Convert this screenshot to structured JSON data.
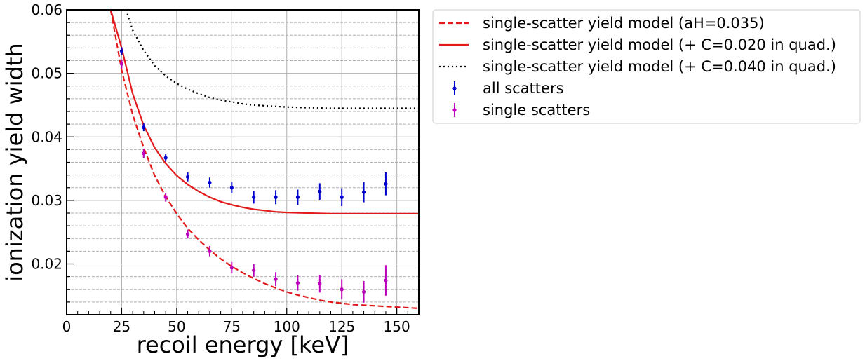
{
  "chart_data": {
    "type": "scatter",
    "xlabel": "recoil energy [keV]",
    "ylabel": "ionization yield width",
    "xlim": [
      0,
      160
    ],
    "ylim": [
      0.012,
      0.06
    ],
    "xticks": [
      0,
      25,
      50,
      75,
      100,
      125,
      150
    ],
    "xtick_labels": [
      "0",
      "25",
      "50",
      "75",
      "100",
      "125",
      "150"
    ],
    "yticks": [
      0.02,
      0.03,
      0.04,
      0.05,
      0.06
    ],
    "ytick_labels": [
      "0.02",
      "0.03",
      "0.04",
      "0.05",
      "0.06"
    ],
    "grid": true,
    "legend_position": "outside upper right",
    "lines": [
      {
        "name": "single-scatter yield model (aH=0.035)",
        "color": "#e31a1c",
        "style": "dashed",
        "x": [
          20,
          25,
          30,
          35,
          40,
          45,
          50,
          55,
          60,
          65,
          70,
          75,
          80,
          85,
          90,
          95,
          100,
          105,
          110,
          115,
          120,
          125,
          130,
          135,
          140,
          145,
          150,
          155,
          160
        ],
        "y": [
          0.06,
          0.0505,
          0.0435,
          0.0383,
          0.0339,
          0.0306,
          0.0279,
          0.0256,
          0.0238,
          0.0222,
          0.0208,
          0.0196,
          0.0186,
          0.0177,
          0.0169,
          0.0162,
          0.0156,
          0.0151,
          0.0147,
          0.0143,
          0.014,
          0.0138,
          0.0136,
          0.0135,
          0.0134,
          0.0133,
          0.0132,
          0.0131,
          0.013
        ]
      },
      {
        "name": "single-scatter yield model (+ C=0.020 in quad.)",
        "color": "#e31a1c",
        "style": "solid",
        "x": [
          20,
          25,
          30,
          35,
          40,
          45,
          50,
          55,
          60,
          65,
          70,
          75,
          80,
          85,
          90,
          95,
          100,
          110,
          120,
          130,
          140,
          150,
          160
        ],
        "y": [
          0.06,
          0.054,
          0.0468,
          0.0418,
          0.0383,
          0.0358,
          0.0339,
          0.0325,
          0.0314,
          0.0305,
          0.0298,
          0.0293,
          0.0289,
          0.0286,
          0.0284,
          0.0282,
          0.0281,
          0.028,
          0.0279,
          0.0279,
          0.0279,
          0.0279,
          0.0279
        ]
      },
      {
        "name": "single-scatter yield model (+ C=0.040 in quad.)",
        "color": "#000000",
        "style": "dotted",
        "x": [
          27,
          30,
          35,
          40,
          45,
          50,
          55,
          60,
          65,
          70,
          75,
          80,
          85,
          90,
          95,
          100,
          110,
          120,
          130,
          140,
          150,
          160
        ],
        "y": [
          0.06,
          0.0568,
          0.0536,
          0.0512,
          0.0496,
          0.0484,
          0.0475,
          0.0468,
          0.0462,
          0.0458,
          0.0455,
          0.0452,
          0.045,
          0.0449,
          0.0448,
          0.0447,
          0.0446,
          0.0445,
          0.0445,
          0.0445,
          0.0445,
          0.0445
        ]
      }
    ],
    "series": [
      {
        "name": "all scatters",
        "color": "#0000cc",
        "x": [
          25,
          35,
          45,
          55,
          65,
          75,
          85,
          95,
          105,
          115,
          125,
          135,
          145
        ],
        "y": [
          0.0535,
          0.0415,
          0.0367,
          0.0337,
          0.0328,
          0.032,
          0.0305,
          0.0305,
          0.0305,
          0.0314,
          0.0305,
          0.0313,
          0.0326
        ],
        "err": [
          0.0006,
          0.0006,
          0.0006,
          0.0007,
          0.0008,
          0.0009,
          0.001,
          0.0011,
          0.0012,
          0.0013,
          0.0014,
          0.0016,
          0.0018
        ]
      },
      {
        "name": "single scatters",
        "color": "#bb00bb",
        "x": [
          25,
          35,
          45,
          55,
          65,
          75,
          85,
          95,
          105,
          115,
          125,
          135,
          145
        ],
        "y": [
          0.0515,
          0.0374,
          0.0305,
          0.0247,
          0.022,
          0.0194,
          0.019,
          0.0176,
          0.017,
          0.0169,
          0.016,
          0.0156,
          0.0174
        ],
        "err": [
          0.0007,
          0.0007,
          0.0007,
          0.0007,
          0.0008,
          0.0009,
          0.001,
          0.0011,
          0.0012,
          0.0014,
          0.0016,
          0.0017,
          0.0024
        ]
      }
    ]
  }
}
